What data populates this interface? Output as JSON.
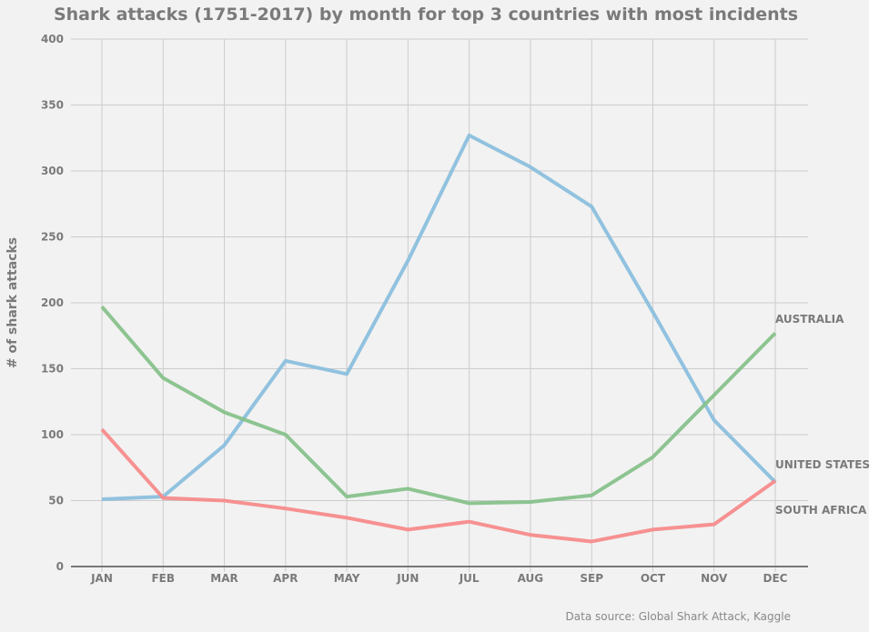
{
  "chart_data": {
    "type": "line",
    "title": "Shark attacks (1751-2017) by month for top 3 countries with most incidents",
    "xlabel": "",
    "ylabel": "# of shark attacks",
    "ylim": [
      0,
      400
    ],
    "yticks": [
      0,
      50,
      100,
      150,
      200,
      250,
      300,
      350,
      400
    ],
    "grid": true,
    "categories": [
      "JAN",
      "FEB",
      "MAR",
      "APR",
      "MAY",
      "JUN",
      "JUL",
      "AUG",
      "SEP",
      "OCT",
      "NOV",
      "DEC"
    ],
    "series": [
      {
        "name": "UNITED STATES",
        "color": "#8bbfdd",
        "values": [
          51,
          53,
          92,
          156,
          146,
          232,
          327,
          303,
          273,
          193,
          111,
          64
        ]
      },
      {
        "name": "AUSTRALIA",
        "color": "#87c18b",
        "values": [
          197,
          143,
          117,
          100,
          53,
          59,
          48,
          49,
          54,
          83,
          130,
          177
        ]
      },
      {
        "name": "SOUTH AFRICA",
        "color": "#f78b8b",
        "values": [
          104,
          52,
          50,
          44,
          37,
          28,
          34,
          24,
          19,
          28,
          32,
          65
        ]
      }
    ],
    "source": "Data source: Global Shark Attack, Kaggle"
  }
}
